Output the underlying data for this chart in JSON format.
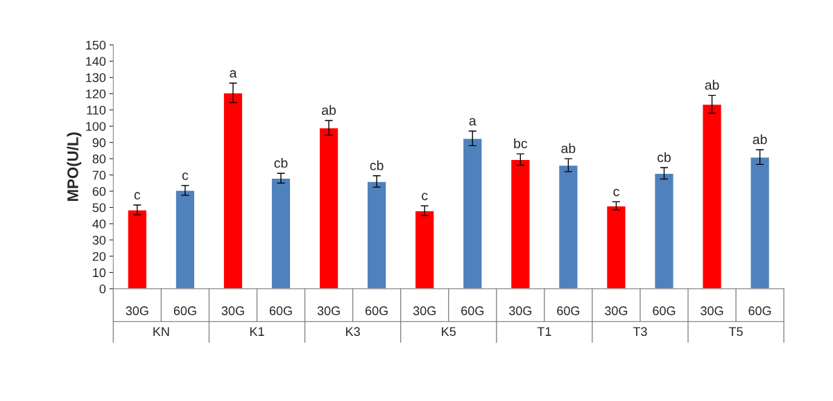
{
  "chart_data": {
    "type": "bar",
    "ylabel": "MPO(U/L)",
    "categories": [
      "30G",
      "60G",
      "30G",
      "60G",
      "30G",
      "60G",
      "30G",
      "60G",
      "30G",
      "60G",
      "30G",
      "60G",
      "30G",
      "60G"
    ],
    "values": [
      48.5,
      60.5,
      120.5,
      68,
      99,
      66,
      48,
      92.5,
      79.5,
      76,
      51,
      71,
      113.5,
      81
    ],
    "colors": [
      "#ff0000",
      "#4f81bd",
      "#ff0000",
      "#4f81bd",
      "#ff0000",
      "#4f81bd",
      "#ff0000",
      "#4f81bd",
      "#ff0000",
      "#4f81bd",
      "#ff0000",
      "#4f81bd",
      "#ff0000",
      "#4f81bd"
    ],
    "errors": [
      3,
      3,
      6,
      3,
      4.5,
      3.5,
      3,
      4.5,
      3.5,
      4,
      2.5,
      3.5,
      5.5,
      4.5
    ],
    "value_labels": [
      "c",
      "c",
      "a",
      "cb",
      "ab",
      "cb",
      "c",
      "a",
      "bc",
      "ab",
      "c",
      "cb",
      "ab",
      "ab"
    ],
    "annotations": [
      "KN",
      "K1",
      "K3",
      "K5",
      "T1",
      "T3",
      "T5"
    ],
    "ylim": [
      0,
      150
    ],
    "yticks": [
      0,
      10,
      20,
      30,
      40,
      50,
      60,
      70,
      80,
      90,
      100,
      110,
      120,
      130,
      140,
      150
    ],
    "grid": false
  }
}
